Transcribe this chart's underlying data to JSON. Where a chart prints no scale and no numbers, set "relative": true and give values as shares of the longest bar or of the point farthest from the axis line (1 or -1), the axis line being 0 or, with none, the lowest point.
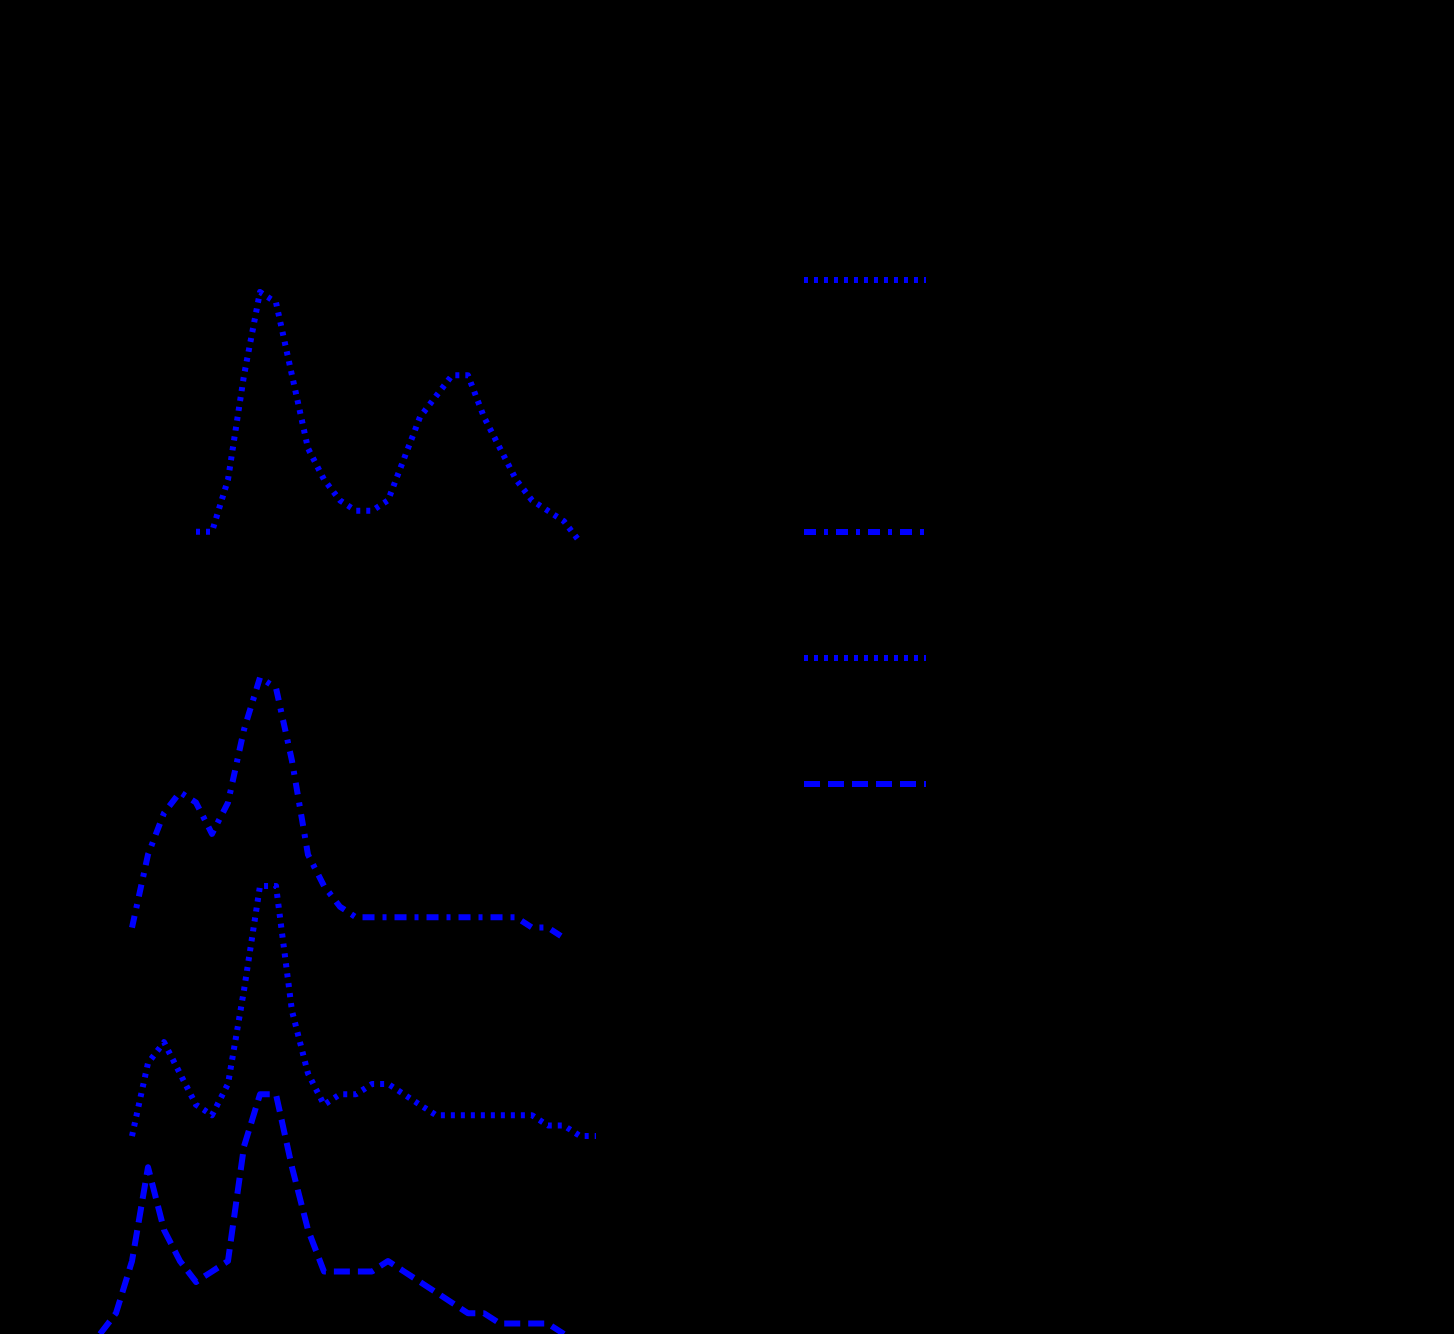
{
  "chart_data": {
    "type": "line",
    "relative": true,
    "categories": [
      null,
      null,
      null,
      null,
      null,
      null,
      null,
      null,
      null,
      null,
      null,
      null,
      null,
      null,
      null,
      null,
      null,
      null,
      null,
      null,
      null,
      null,
      null,
      null,
      null,
      null,
      null,
      null,
      null,
      null,
      null,
      null
    ],
    "series": [
      {
        "color": "#0000ff",
        "line_style": "dotted",
        "values": [
          null,
          null,
          null,
          null,
          null,
          null,
          0.77,
          0.77,
          0.82,
          0.92,
          1.0,
          0.99,
          0.92,
          0.85,
          0.82,
          0.8,
          0.79,
          0.79,
          0.8,
          0.84,
          0.88,
          0.9,
          0.92,
          0.92,
          0.88,
          0.85,
          0.82,
          0.8,
          0.79,
          0.78,
          0.76,
          null
        ]
      },
      {
        "color": "#0000ff",
        "line_style": "dashdot",
        "values": [
          null,
          null,
          0.39,
          0.46,
          0.5,
          0.52,
          0.51,
          0.48,
          0.51,
          0.58,
          0.63,
          0.62,
          0.55,
          0.46,
          0.43,
          0.41,
          0.4,
          0.4,
          0.4,
          0.4,
          0.4,
          0.4,
          0.4,
          0.4,
          0.4,
          0.4,
          0.4,
          0.39,
          0.39,
          0.38,
          null,
          null
        ]
      },
      {
        "color": "#0000ff",
        "line_style": "dotted",
        "values": [
          null,
          null,
          0.19,
          0.26,
          0.28,
          0.25,
          0.22,
          0.21,
          0.24,
          0.33,
          0.43,
          0.43,
          0.31,
          0.25,
          0.22,
          0.23,
          0.23,
          0.24,
          0.24,
          0.23,
          0.22,
          0.21,
          0.21,
          0.21,
          0.21,
          0.21,
          0.21,
          0.21,
          0.2,
          0.2,
          0.19,
          0.19
        ]
      },
      {
        "color": "#0000ff",
        "line_style": "dashed",
        "values": [
          0,
          0.02,
          0.07,
          0.16,
          0.1,
          0.07,
          0.05,
          0.06,
          0.07,
          0.18,
          0.23,
          0.23,
          0.16,
          0.1,
          0.06,
          0.06,
          0.06,
          0.06,
          0.07,
          0.06,
          0.05,
          0.04,
          0.03,
          0.02,
          0.02,
          0.01,
          0.01,
          0.01,
          0.01,
          0.0,
          null,
          null
        ]
      }
    ]
  }
}
